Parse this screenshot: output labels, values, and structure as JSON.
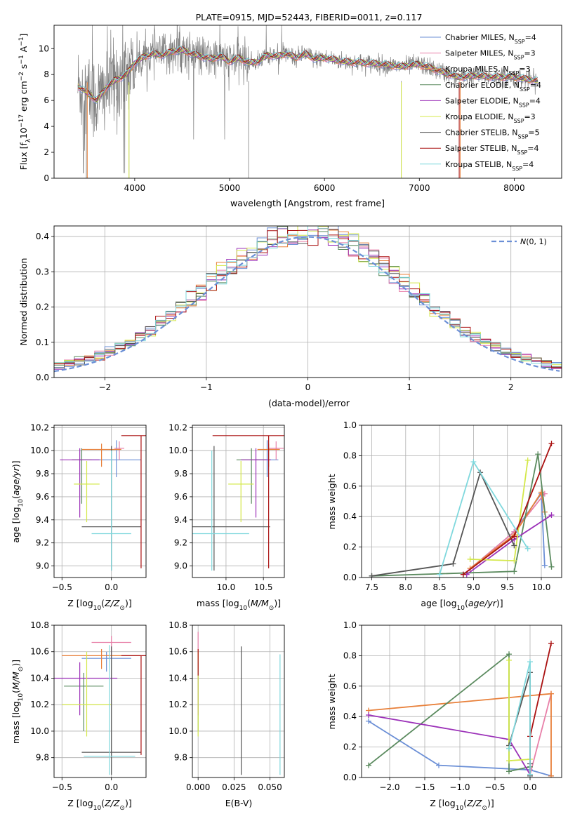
{
  "title": "PLATE=0915, MJD=52443, FIBERID=0011, z=0.117",
  "colors": {
    "chabrier_miles": "#6b8fd6",
    "salpeter_miles": "#e87fa8",
    "kroupa_miles": "#e8803a",
    "chabrier_elodie": "#5a8a5e",
    "salpeter_elodie": "#9b30b8",
    "kroupa_elodie": "#d4e84a",
    "chabrier_stelib": "#555555",
    "salpeter_stelib": "#aa1111",
    "kroupa_stelib": "#7fd8dd",
    "data_spectrum": "#808080",
    "gaussian": "#6b8fd6",
    "grid": "#b0b0b0"
  },
  "chart_data": [
    {
      "id": "spectrum",
      "type": "line",
      "title": "PLATE=0915, MJD=52443, FIBERID=0011, z=0.117",
      "xlabel": "wavelength [Angstrom, rest frame]",
      "ylabel": "Flux [f_λ10^-17 erg cm^-2 s^-1 A^-1]",
      "xlim": [
        3150,
        8500
      ],
      "ylim": [
        0,
        11.8
      ],
      "xticks": [
        4000,
        5000,
        6000,
        7000,
        8000
      ],
      "yticks": [
        0,
        2,
        4,
        6,
        8,
        10
      ],
      "grid": false,
      "legend_position": "top-right",
      "legend": [
        {
          "label": "Chabrier MILES, N_SSP=4",
          "color": "#6b8fd6"
        },
        {
          "label": "Salpeter MILES, N_SSP=3",
          "color": "#e87fa8"
        },
        {
          "label": "Kroupa MILES, N_SSP=3",
          "color": "#e8803a"
        },
        {
          "label": "Chabrier ELODIE, N_SSP=4",
          "color": "#5a8a5e"
        },
        {
          "label": "Salpeter ELODIE, N_SSP=4",
          "color": "#9b30b8"
        },
        {
          "label": "Kroupa ELODIE, N_SSP=3",
          "color": "#d4e84a"
        },
        {
          "label": "Chabrier STELIB, N_SSP=5",
          "color": "#555555"
        },
        {
          "label": "Salpeter STELIB, N_SSP=4",
          "color": "#aa1111"
        },
        {
          "label": "Kroupa STELIB, N_SSP=4",
          "color": "#7fd8dd"
        }
      ],
      "data_range": [
        3400,
        8250
      ],
      "model_profile": {
        "wavelength": [
          3400,
          3500,
          3600,
          3700,
          3800,
          3900,
          4000,
          4100,
          4200,
          4300,
          4400,
          4500,
          4600,
          4700,
          4800,
          4900,
          5000,
          5100,
          5200,
          5300,
          5400,
          5500,
          5600,
          5700,
          5800,
          5900,
          6000,
          6200,
          6400,
          6600,
          6800,
          7000,
          7200,
          7400,
          7600,
          7800,
          8000,
          8250
        ],
        "flux": [
          7.1,
          6.6,
          6.0,
          7.0,
          7.6,
          7.9,
          8.9,
          9.4,
          9.6,
          9.5,
          9.8,
          9.9,
          9.6,
          9.4,
          9.2,
          9.4,
          9.0,
          9.3,
          8.9,
          9.0,
          9.5,
          9.4,
          9.6,
          9.3,
          9.6,
          9.2,
          9.3,
          9.0,
          8.9,
          8.8,
          8.6,
          8.8,
          8.3,
          7.8,
          7.9,
          7.8,
          7.8,
          7.5
        ]
      }
    },
    {
      "id": "residuals",
      "type": "step",
      "xlabel": "(data-model)/error",
      "ylabel": "Normed distribution",
      "xlim": [
        -2.5,
        2.5
      ],
      "ylim": [
        0,
        0.43
      ],
      "xticks": [
        -2,
        -1,
        0,
        1,
        2
      ],
      "yticks": [
        0.0,
        0.1,
        0.2,
        0.3,
        0.4
      ],
      "grid": true,
      "legend_position": "top-right",
      "legend": [
        {
          "label": "N(0, 1)",
          "color": "#6b8fd6",
          "style": "dashed"
        }
      ],
      "bin_width": 0.1,
      "gaussian": {
        "mean": 0,
        "sigma": 1
      }
    },
    {
      "id": "age_vs_Z",
      "type": "errorbar",
      "xlabel": "Z [log10(Z/Z⊙)]",
      "ylabel": "age [log10(age/yr)]",
      "xlim": [
        -0.58,
        0.35
      ],
      "ylim": [
        8.9,
        10.22
      ],
      "xticks": [
        -0.5,
        0.0
      ],
      "yticks": [
        9.0,
        9.2,
        9.4,
        9.6,
        9.8,
        10.0,
        10.2
      ],
      "grid": true,
      "points": [
        {
          "color": "#6b8fd6",
          "x": 0.05,
          "xerr": 0.25,
          "y": 9.92,
          "yerr": [
            0.15,
            0.17
          ]
        },
        {
          "color": "#e87fa8",
          "x": 0.08,
          "xerr": 0.05,
          "y": 10.02,
          "yerr": [
            0.1,
            0.06
          ]
        },
        {
          "color": "#e8803a",
          "x": -0.1,
          "xerr": 0.2,
          "y": 10.01,
          "yerr": [
            0.15,
            0.05
          ]
        },
        {
          "color": "#5a8a5e",
          "x": -0.3,
          "xerr": 0.1,
          "y": 9.92,
          "yerr": [
            0.38,
            0.1
          ]
        },
        {
          "color": "#9b30b8",
          "x": -0.32,
          "xerr": 0.2,
          "y": 9.92,
          "yerr": [
            0.5,
            0.1
          ]
        },
        {
          "color": "#d4e84a",
          "x": -0.25,
          "xerr": 0.13,
          "y": 9.71,
          "yerr": [
            0.33,
            0.2
          ]
        },
        {
          "color": "#555555",
          "x": 0.0,
          "xerr": 0.3,
          "y": 9.34,
          "yerr": [
            0.38,
            0.7
          ]
        },
        {
          "color": "#aa1111",
          "x": 0.3,
          "xerr": 0.2,
          "y": 10.13,
          "yerr": [
            1.15,
            0.0
          ]
        },
        {
          "color": "#7fd8dd",
          "x": 0.0,
          "xerr": 0.2,
          "y": 9.28,
          "yerr": [
            0.32,
            0.72
          ]
        }
      ]
    },
    {
      "id": "age_vs_mass",
      "type": "errorbar",
      "xlabel": "mass [log10(M/M⊙)]",
      "ylabel": "",
      "xlim": [
        9.55,
        10.78
      ],
      "ylim": [
        8.9,
        10.22
      ],
      "xticks": [
        10.0,
        10.5
      ],
      "yticks": [
        9.0,
        9.2,
        9.4,
        9.6,
        9.8,
        10.0,
        10.2
      ],
      "grid": true,
      "points": [
        {
          "color": "#6b8fd6",
          "x": 10.55,
          "xerr": 0.15,
          "y": 9.92,
          "yerr": [
            0.15,
            0.17
          ]
        },
        {
          "color": "#e87fa8",
          "x": 10.67,
          "xerr": 0.1,
          "y": 10.02,
          "yerr": [
            0.1,
            0.06
          ]
        },
        {
          "color": "#e8803a",
          "x": 10.57,
          "xerr": 0.15,
          "y": 10.01,
          "yerr": [
            0.15,
            0.05
          ]
        },
        {
          "color": "#5a8a5e",
          "x": 10.34,
          "xerr": 0.2,
          "y": 9.92,
          "yerr": [
            0.38,
            0.1
          ]
        },
        {
          "color": "#9b30b8",
          "x": 10.4,
          "xerr": 0.2,
          "y": 9.92,
          "yerr": [
            0.5,
            0.1
          ]
        },
        {
          "color": "#d4e84a",
          "x": 10.2,
          "xerr": 0.17,
          "y": 9.71,
          "yerr": [
            0.33,
            0.2
          ]
        },
        {
          "color": "#555555",
          "x": 9.84,
          "xerr": 0.75,
          "y": 9.34,
          "yerr": [
            0.38,
            0.7
          ]
        },
        {
          "color": "#aa1111",
          "x": 10.57,
          "xerr": 0.75,
          "y": 10.13,
          "yerr": [
            1.15,
            0.0
          ]
        },
        {
          "color": "#7fd8dd",
          "x": 9.81,
          "xerr": 0.5,
          "y": 9.28,
          "yerr": [
            0.32,
            0.72
          ]
        }
      ]
    },
    {
      "id": "weight_vs_age",
      "type": "line",
      "xlabel": "age [log10(age/yr)]",
      "ylabel": "mass weight",
      "xlim": [
        7.35,
        10.3
      ],
      "ylim": [
        0,
        1.0
      ],
      "xticks": [
        7.5,
        8.0,
        8.5,
        9.0,
        9.5,
        10.0
      ],
      "yticks": [
        0.0,
        0.2,
        0.4,
        0.6,
        0.8,
        1.0
      ],
      "grid": true,
      "series": [
        {
          "color": "#6b8fd6",
          "x": [
            8.85,
            9.6,
            10.0,
            10.05
          ],
          "y": [
            0.02,
            0.3,
            0.55,
            0.08
          ]
        },
        {
          "color": "#e87fa8",
          "x": [
            8.85,
            9.6,
            10.05
          ],
          "y": [
            0.02,
            0.3,
            0.55
          ]
        },
        {
          "color": "#e8803a",
          "x": [
            8.95,
            9.6,
            10.0,
            10.05
          ],
          "y": [
            0.06,
            0.28,
            0.56,
            0.43
          ]
        },
        {
          "color": "#5a8a5e",
          "x": [
            7.5,
            9.6,
            9.95,
            10.15
          ],
          "y": [
            0.01,
            0.04,
            0.81,
            0.07
          ]
        },
        {
          "color": "#9b30b8",
          "x": [
            8.9,
            9.6,
            10.15
          ],
          "y": [
            0.02,
            0.25,
            0.41
          ]
        },
        {
          "color": "#d4e84a",
          "x": [
            8.95,
            9.6,
            9.8
          ],
          "y": [
            0.12,
            0.11,
            0.77
          ]
        },
        {
          "color": "#555555",
          "x": [
            7.5,
            8.7,
            9.1,
            9.6
          ],
          "y": [
            0.01,
            0.09,
            0.69,
            0.21
          ]
        },
        {
          "color": "#aa1111",
          "x": [
            8.85,
            9.6,
            10.15
          ],
          "y": [
            0.02,
            0.27,
            0.88
          ]
        },
        {
          "color": "#7fd8dd",
          "x": [
            8.5,
            9.0,
            9.8
          ],
          "y": [
            0.02,
            0.76,
            0.19
          ]
        }
      ]
    },
    {
      "id": "mass_vs_Z",
      "type": "errorbar",
      "xlabel": "Z [log10(Z/Z⊙)]",
      "ylabel": "mass [log10(M/M⊙)]",
      "xlim": [
        -0.58,
        0.35
      ],
      "ylim": [
        9.65,
        10.8
      ],
      "xticks": [
        -0.5,
        0.0
      ],
      "yticks": [
        9.8,
        10.0,
        10.2,
        10.4,
        10.6,
        10.8
      ],
      "grid": true,
      "points": [
        {
          "color": "#6b8fd6",
          "x": -0.05,
          "xerr": 0.25,
          "y": 10.55,
          "yerr": [
            0.1,
            0.05
          ]
        },
        {
          "color": "#e87fa8",
          "x": 0.0,
          "xerr": 0.2,
          "y": 10.67,
          "yerr": [
            0.12,
            0.05
          ]
        },
        {
          "color": "#e8803a",
          "x": -0.1,
          "xerr": 0.4,
          "y": 10.57,
          "yerr": [
            0.1,
            0.05
          ]
        },
        {
          "color": "#5a8a5e",
          "x": -0.28,
          "xerr": 0.2,
          "y": 10.34,
          "yerr": [
            0.34,
            0.1
          ]
        },
        {
          "color": "#9b30b8",
          "x": -0.32,
          "xerr": 0.38,
          "y": 10.4,
          "yerr": [
            0.28,
            0.12
          ]
        },
        {
          "color": "#d4e84a",
          "x": -0.25,
          "xerr": 0.25,
          "y": 10.2,
          "yerr": [
            0.24,
            0.4
          ]
        },
        {
          "color": "#555555",
          "x": 0.0,
          "xerr": 0.3,
          "y": 9.84,
          "yerr": [
            0.17,
            0.8
          ]
        },
        {
          "color": "#aa1111",
          "x": 0.3,
          "xerr": 0.2,
          "y": 10.57,
          "yerr": [
            0.75,
            0.0
          ]
        },
        {
          "color": "#7fd8dd",
          "x": -0.02,
          "xerr": 0.26,
          "y": 9.81,
          "yerr": [
            0.14,
            0.84
          ]
        }
      ]
    },
    {
      "id": "mass_vs_EBV",
      "type": "errorbar",
      "xlabel": "E(B-V)",
      "ylabel": "",
      "xlim": [
        -0.004,
        0.06
      ],
      "ylim": [
        9.65,
        10.8
      ],
      "xticks": [
        0.0,
        0.025,
        0.05
      ],
      "yticks": [
        9.8,
        10.0,
        10.2,
        10.4,
        10.6,
        10.8
      ],
      "grid": true,
      "points": [
        {
          "color": "#6b8fd6",
          "x": 0.0,
          "y": 10.55,
          "yerr": [
            0.1,
            0.05
          ]
        },
        {
          "color": "#e87fa8",
          "x": 0.0,
          "y": 10.67,
          "yerr": [
            0.12,
            0.08
          ]
        },
        {
          "color": "#e8803a",
          "x": 0.0,
          "y": 10.57,
          "yerr": [
            0.1,
            0.05
          ]
        },
        {
          "color": "#5a8a5e",
          "x": 0.0,
          "y": 10.34,
          "yerr": [
            0.34,
            0.1
          ]
        },
        {
          "color": "#9b30b8",
          "x": 0.0,
          "y": 10.4,
          "yerr": [
            0.28,
            0.12
          ]
        },
        {
          "color": "#d4e84a",
          "x": 0.0,
          "y": 10.2,
          "yerr": [
            0.24,
            0.4
          ]
        },
        {
          "color": "#555555",
          "x": 0.03,
          "y": 9.84,
          "yerr": [
            0.17,
            0.8
          ]
        },
        {
          "color": "#aa1111",
          "x": 0.0,
          "y": 10.57,
          "yerr": [
            0.15,
            0.05
          ]
        },
        {
          "color": "#7fd8dd",
          "x": 0.057,
          "y": 9.81,
          "yerr": [
            0.14,
            0.77
          ]
        }
      ]
    },
    {
      "id": "weight_vs_Z",
      "type": "line",
      "xlabel": "Z [log10(Z/Z⊙)]",
      "ylabel": "mass weight",
      "xlim": [
        -2.4,
        0.45
      ],
      "ylim": [
        0,
        1.0
      ],
      "xticks": [
        -2.0,
        -1.5,
        -1.0,
        -0.5,
        0.0
      ],
      "yticks": [
        0.0,
        0.2,
        0.4,
        0.6,
        0.8,
        1.0
      ],
      "grid": true,
      "series": [
        {
          "color": "#6b8fd6",
          "x": [
            -2.3,
            -1.3,
            0.0,
            0.3
          ],
          "y": [
            0.37,
            0.08,
            0.05,
            0.01
          ]
        },
        {
          "color": "#e87fa8",
          "x": [
            0.0,
            0.3
          ],
          "y": [
            0.02,
            0.55
          ]
        },
        {
          "color": "#e8803a",
          "x": [
            -2.3,
            0.3,
            0.3
          ],
          "y": [
            0.44,
            0.55,
            0.01
          ]
        },
        {
          "color": "#5a8a5e",
          "x": [
            -2.3,
            -0.3,
            -0.3,
            0.0
          ],
          "y": [
            0.08,
            0.81,
            0.04,
            0.07
          ]
        },
        {
          "color": "#9b30b8",
          "x": [
            -2.3,
            -0.3,
            0.0
          ],
          "y": [
            0.41,
            0.25,
            0.02
          ]
        },
        {
          "color": "#d4e84a",
          "x": [
            -0.3,
            -0.3,
            0.0
          ],
          "y": [
            0.77,
            0.11,
            0.12
          ]
        },
        {
          "color": "#555555",
          "x": [
            -0.3,
            0.0,
            0.0,
            0.0
          ],
          "y": [
            0.21,
            0.69,
            0.09,
            0.01
          ]
        },
        {
          "color": "#aa1111",
          "x": [
            0.0,
            0.0,
            0.3
          ],
          "y": [
            0.02,
            0.27,
            0.88
          ]
        },
        {
          "color": "#7fd8dd",
          "x": [
            -0.3,
            0.0,
            0.0
          ],
          "y": [
            0.19,
            0.76,
            0.02
          ]
        }
      ]
    }
  ]
}
